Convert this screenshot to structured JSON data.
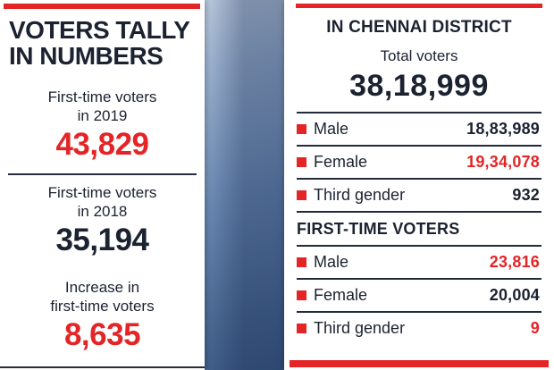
{
  "colors": {
    "accent_red": "#e42527",
    "text_dark": "#1b2230",
    "background_blue": "#6a88b1"
  },
  "left_panel": {
    "title_line1": "VOTERS TALLY",
    "title_line2": "IN NUMBERS",
    "stats": [
      {
        "label_line1": "First-time voters",
        "label_line2": "in 2019",
        "value": "43,829",
        "value_color": "#e42527"
      },
      {
        "label_line1": "First-time voters",
        "label_line2": "in 2018",
        "value": "35,194",
        "value_color": "#1b2230"
      },
      {
        "label_line1": "Increase in",
        "label_line2": "first-time voters",
        "value": "8,635",
        "value_color": "#e42527"
      }
    ]
  },
  "right_panel": {
    "title": "IN CHENNAI DISTRICT",
    "total_label": "Total voters",
    "total_value": "38,18,999",
    "rows": [
      {
        "label": "Male",
        "value": "18,83,989",
        "value_color": "#1b2230"
      },
      {
        "label": "Female",
        "value": "19,34,078",
        "value_color": "#e42527"
      },
      {
        "label": "Third gender",
        "value": "932",
        "value_color": "#1b2230"
      }
    ],
    "section_title": "FIRST-TIME VOTERS",
    "section_rows": [
      {
        "label": "Male",
        "value": "23,816",
        "value_color": "#e42527"
      },
      {
        "label": "Female",
        "value": "20,004",
        "value_color": "#1b2230"
      },
      {
        "label": "Third gender",
        "value": "9",
        "value_color": "#e42527"
      }
    ]
  },
  "chart_data": [
    {
      "type": "table",
      "title": "VOTERS TALLY IN NUMBERS",
      "rows": [
        {
          "label": "First-time voters in 2019",
          "value": 43829
        },
        {
          "label": "First-time voters in 2018",
          "value": 35194
        },
        {
          "label": "Increase in first-time voters",
          "value": 8635
        }
      ]
    },
    {
      "type": "table",
      "title": "IN CHENNAI DISTRICT",
      "rows": [
        {
          "label": "Total voters",
          "value": 3818999
        },
        {
          "label": "Male",
          "value": 1883989
        },
        {
          "label": "Female",
          "value": 1934078
        },
        {
          "label": "Third gender",
          "value": 932
        },
        {
          "label": "First-time voters — Male",
          "value": 23816
        },
        {
          "label": "First-time voters — Female",
          "value": 20004
        },
        {
          "label": "First-time voters — Third gender",
          "value": 9
        }
      ]
    }
  ]
}
